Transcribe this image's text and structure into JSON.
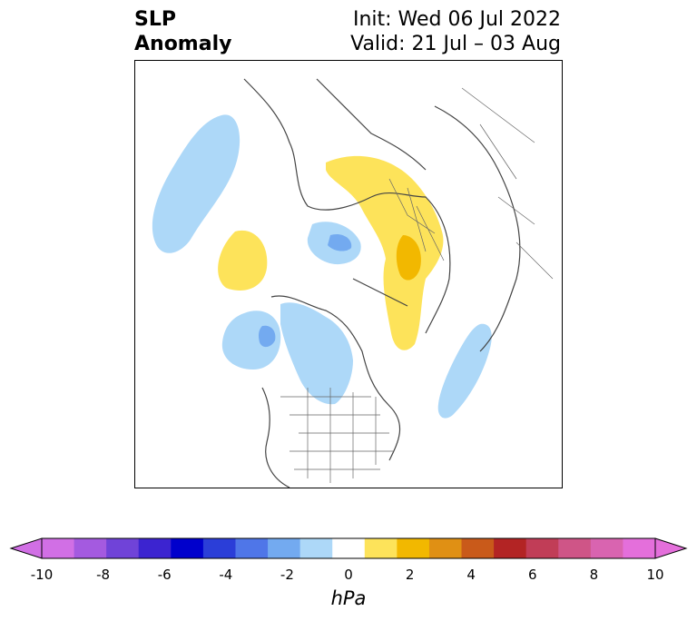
{
  "title": {
    "left_line1": "SLP",
    "left_line2": "Anomaly",
    "right_line1": "Init: Wed 06 Jul 2022",
    "right_line2": "Valid: 21 Jul – 03 Aug"
  },
  "colorbar": {
    "units": "hPa",
    "ticks": [
      "-10",
      "-8",
      "-6",
      "-4",
      "-2",
      "0",
      "2",
      "4",
      "6",
      "8",
      "10"
    ],
    "colors": [
      "#d16fe5",
      "#a45ae0",
      "#7043d8",
      "#3c24d0",
      "#0000cc",
      "#2b3ed8",
      "#4f76e8",
      "#73aaf0",
      "#add8f8",
      "#ffffff",
      "#fde35a",
      "#f2b800",
      "#e09014",
      "#c95a1a",
      "#b32424",
      "#c13d57",
      "#cf5587",
      "#d964b0",
      "#e46fdb"
    ]
  },
  "map": {
    "features": [
      "blue-anomaly-north-pacific-west",
      "blue-anomaly-siberia",
      "yellow-anomaly-east-siberia",
      "yellow-anomaly-scandinavia-russia",
      "yellow-anomaly-greenland",
      "blue-anomaly-canada",
      "blue-anomaly-north-atlantic"
    ]
  }
}
